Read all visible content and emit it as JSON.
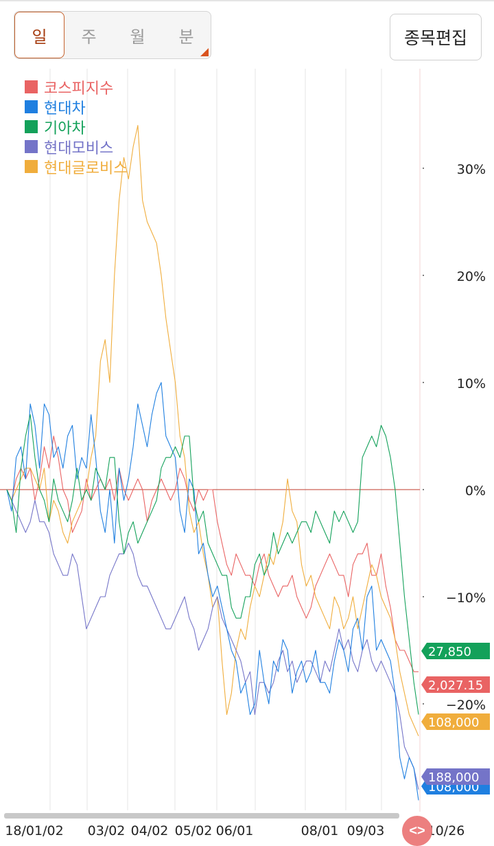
{
  "period_tabs": [
    {
      "label": "일",
      "active": true
    },
    {
      "label": "주",
      "active": false
    },
    {
      "label": "월",
      "active": false
    },
    {
      "label": "분",
      "active": false
    }
  ],
  "edit_button": "종목편집",
  "colors": {
    "kospi": "#e96363",
    "hyundai": "#1f7fe0",
    "kia": "#13a15a",
    "mobis": "#7474c8",
    "glovis": "#f0ad3c",
    "zero_line": "#c0392b"
  },
  "chart_data": {
    "type": "line",
    "x_ticks": [
      "18/01/02",
      "03/02",
      "04/02",
      "05/02",
      "06/01",
      "08/01",
      "09/03",
      "10/26"
    ],
    "y_ticks": [
      "30%",
      "20%",
      "10%",
      "0%",
      "−10%",
      "−20%"
    ],
    "ylim": [
      -28,
      38
    ],
    "grid": true,
    "legend_position": "top-left",
    "series": [
      {
        "name": "코스피지수",
        "color_key": "kospi",
        "last_label": "2,027.15",
        "values": [
          0,
          -1,
          1,
          2,
          1,
          2,
          -1,
          1,
          4,
          2,
          5,
          3,
          0,
          -1,
          -4,
          -3,
          -2,
          1,
          -1,
          0,
          1,
          0,
          1,
          -1,
          2,
          0,
          -1,
          0,
          1,
          0,
          -3,
          -1,
          0,
          1,
          0,
          -1,
          0,
          2,
          1,
          -1,
          -2,
          0,
          -1,
          0,
          0,
          -3,
          -5,
          -7,
          -8,
          -6,
          -7,
          -8,
          -8,
          -9,
          -7,
          -6,
          -8,
          -9,
          -10,
          -9,
          -9,
          -8,
          -10,
          -11,
          -12,
          -11,
          -9,
          -8,
          -7,
          -6,
          -7,
          -8,
          -8,
          -10,
          -7,
          -6,
          -6,
          -5,
          -8,
          -8,
          -6,
          -9,
          -11,
          -14,
          -15,
          -15,
          -16,
          -17,
          -17
        ]
      },
      {
        "name": "현대차",
        "color_key": "hyundai",
        "last_label": "108,000",
        "values": [
          0,
          -2,
          3,
          4,
          1,
          8,
          6,
          2,
          8,
          7,
          3,
          4,
          2,
          5,
          6,
          1,
          3,
          2,
          7,
          3,
          -2,
          -4,
          0,
          -5,
          2,
          -1,
          1,
          4,
          8,
          6,
          4,
          7,
          9,
          10,
          5,
          4,
          3,
          -2,
          -4,
          1,
          0,
          -6,
          -5,
          -8,
          -10,
          -9,
          -11,
          -13,
          -15,
          -16,
          -19,
          -18,
          -21,
          -20,
          -15,
          -18,
          -20,
          -16,
          -17,
          -14,
          -15,
          -19,
          -17,
          -16,
          -18,
          -17,
          -15,
          -18,
          -18,
          -19,
          -16,
          -14,
          -15,
          -17,
          -13,
          -12,
          -15,
          -10,
          -9,
          -15,
          -14,
          -15,
          -16,
          -19,
          -25,
          -27,
          -25,
          -26,
          -29
        ]
      },
      {
        "name": "기아차",
        "color_key": "kia",
        "last_label": "27,850",
        "values": [
          0,
          -1,
          -4,
          2,
          5,
          7,
          3,
          0,
          -1,
          -3,
          1,
          -1,
          -2,
          -3,
          -1,
          2,
          -1,
          0,
          -1,
          2,
          1,
          0,
          3,
          3,
          -3,
          -6,
          -4,
          -3,
          -5,
          -4,
          -3,
          -2,
          -1,
          2,
          3,
          3,
          4,
          3,
          5,
          5,
          -1,
          -3,
          -2,
          -5,
          -6,
          -7,
          -8,
          -8,
          -11,
          -12,
          -12,
          -10,
          -10,
          -7,
          -6,
          -8,
          -7,
          -4,
          -6,
          -5,
          -4,
          -5,
          -4,
          -3,
          -3,
          -4,
          -2,
          -3,
          -4,
          -5,
          -2,
          -3,
          -2,
          -3,
          -4,
          -3,
          3,
          4,
          5,
          4,
          6,
          5,
          3,
          0,
          -5,
          -10,
          -14,
          -18,
          -21
        ]
      },
      {
        "name": "현대모비스",
        "color_key": "mobis",
        "last_label": "188,000",
        "values": [
          0,
          -1,
          -2,
          -3,
          -4,
          -3,
          -1,
          -3,
          -3,
          -4,
          -6,
          -7,
          -8,
          -8,
          -6,
          -7,
          -10,
          -13,
          -12,
          -11,
          -10,
          -10,
          -8,
          -7,
          -6,
          -6,
          -5,
          -6,
          -8,
          -9,
          -9,
          -10,
          -11,
          -12,
          -13,
          -13,
          -12,
          -11,
          -10,
          -12,
          -13,
          -15,
          -14,
          -13,
          -11,
          -10,
          -12,
          -13,
          -14,
          -15,
          -16,
          -18,
          -17,
          -21,
          -18,
          -18,
          -19,
          -18,
          -16,
          -15,
          -17,
          -16,
          -18,
          -17,
          -16,
          -16,
          -17,
          -18,
          -16,
          -17,
          -15,
          -13,
          -15,
          -14,
          -16,
          -17,
          -15,
          -14,
          -16,
          -17,
          -16,
          -17,
          -18,
          -19,
          -21,
          -24,
          -25,
          -26,
          -28
        ]
      },
      {
        "name": "현대글로비스",
        "color_key": "glovis",
        "last_label": "108,000",
        "values": [
          0,
          -1,
          0,
          1,
          2,
          2,
          1,
          0,
          2,
          -3,
          -1,
          -2,
          -4,
          -5,
          -3,
          -2,
          -1,
          0,
          3,
          5,
          12,
          14,
          10,
          20,
          27,
          31,
          29,
          32,
          34,
          27,
          25,
          24,
          23,
          20,
          16,
          13,
          10,
          5,
          3,
          -2,
          -4,
          -3,
          -6,
          -8,
          -11,
          -10,
          -16,
          -21,
          -19,
          -15,
          -13,
          -14,
          -11,
          -9,
          -10,
          -8,
          -6,
          -7,
          -5,
          -3,
          1,
          -2,
          -3,
          -7,
          -9,
          -8,
          -10,
          -11,
          -12,
          -13,
          -10,
          -11,
          -13,
          -12,
          -10,
          -13,
          -11,
          -9,
          -7,
          -8,
          -10,
          -11,
          -12,
          -14,
          -17,
          -19,
          -21,
          -22,
          -23
        ]
      }
    ]
  }
}
